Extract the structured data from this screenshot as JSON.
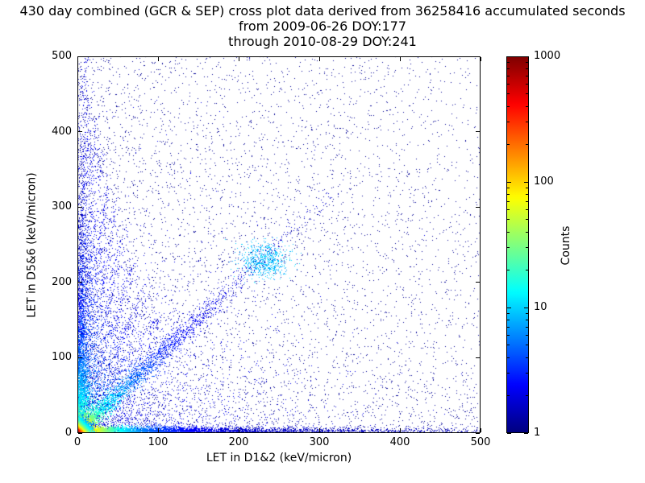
{
  "chart_data": {
    "type": "scatter",
    "subtype": "density_cross_plot",
    "title_lines": [
      "430 day combined (GCR & SEP) cross plot data derived from 36258416 accumulated seconds",
      "from 2009-06-26 DOY:177",
      "through 2010-08-29 DOY:241"
    ],
    "derived_from": {
      "days": "430",
      "accumulated_seconds": "36258416",
      "start": "2009-06-26 DOY:177",
      "end": "2010-08-29 DOY:241"
    },
    "xlabel": "LET in D1&2 (keV/micron)",
    "ylabel": "LET in D5&6 (keV/micron)",
    "xlim": [
      0,
      500
    ],
    "ylim": [
      0,
      500
    ],
    "xticks": [
      0,
      100,
      200,
      300,
      400,
      500
    ],
    "yticks": [
      0,
      100,
      200,
      300,
      400,
      500
    ],
    "grid": false,
    "colorbar": {
      "label": "Counts",
      "scale": "log",
      "min": 1,
      "max": 1000,
      "ticks": [
        1,
        10,
        100,
        1000
      ],
      "colormap": "jet"
    },
    "features": [
      "very dense hot core (dark red/orange/yellow, counts ~100-1000) at the origin below ~20 keV/micron in both detectors",
      "bright yellow-green-cyan band along the bottom edge (low D5&6 LET) fading to blue by D1&2 ~150",
      "dense blue/cyan vertical column and fan of streaks at low D1&2 LET (x < ~130) reaching up to ~500",
      "diagonal correlation band y = x extending to ~320 keV/micron with a secondary cyan-blue cluster near (230, 230)",
      "sparse isolated single counts (dark navy, count = 1) scattered over the entire 0-500 x 0-500 range, thinning toward high LET"
    ],
    "generation": {
      "seed": 1337,
      "components": [
        {
          "kind": "uniform",
          "n": 4200,
          "x_pow": 1.6,
          "y_pow": 1.25,
          "t": 0.02
        },
        {
          "kind": "uniform",
          "n": 1400,
          "x_pow": 1.0,
          "y_pow": 1.0,
          "t": 0.02
        },
        {
          "kind": "midfield",
          "n": 2400,
          "x_scale": 75,
          "y_scale": 75,
          "t": 0.1
        },
        {
          "kind": "left_band",
          "n": 3000,
          "y_scale": 115,
          "x_sigma": 7,
          "t_amp": 0.6,
          "t_tau": 70,
          "t_base": 0.06
        },
        {
          "kind": "bottom_band",
          "n": 4200,
          "x_scale": 150,
          "y_sigma": 3.5,
          "t_amp": 0.85,
          "t_tau": 55,
          "t_base": 0.06
        },
        {
          "kind": "fan",
          "n_per": 300,
          "sigma": 2.5,
          "t_amp": 0.35,
          "t_base": 0.07,
          "streaks": [
            [
              10,
              500
            ],
            [
              16,
              455
            ],
            [
              23,
              420
            ],
            [
              30,
              380
            ],
            [
              38,
              335
            ],
            [
              48,
              300
            ],
            [
              58,
              262
            ],
            [
              70,
              222
            ],
            [
              85,
              186
            ],
            [
              104,
              158
            ],
            [
              128,
              138
            ]
          ]
        },
        {
          "kind": "diagonal",
          "n": 2400,
          "scale": 85,
          "max": 330,
          "sigma": 6,
          "t_amp": 0.55,
          "t_tau": 60,
          "t_base": 0.07
        },
        {
          "kind": "blob",
          "n": 650,
          "cx": 232,
          "cy": 228,
          "sx": 15,
          "sy": 12,
          "t": 0.27
        },
        {
          "kind": "core_diag",
          "n": 1600,
          "scale": 9,
          "max": 40,
          "sigma": 1.6,
          "t_amp": 0.85,
          "t_tau": 25,
          "t_base": 0.1
        },
        {
          "kind": "core",
          "n": 5200,
          "scale": 6.5,
          "t_tau": 15,
          "t_base": 0.12
        }
      ]
    }
  }
}
